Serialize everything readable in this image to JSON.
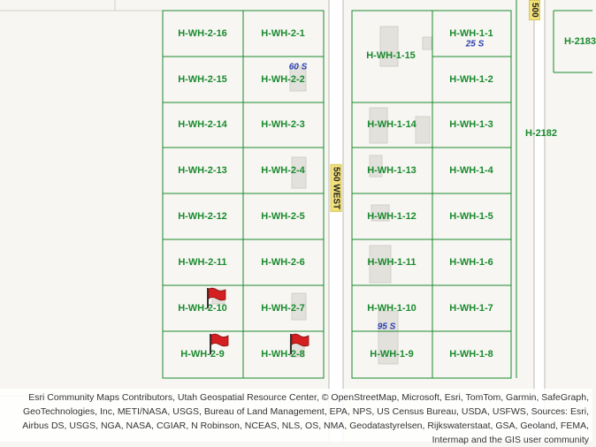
{
  "map": {
    "road": {
      "label": "550 WEST",
      "corner_label": "500"
    },
    "parcels_west": [
      "H-WH-2-16",
      "H-WH-2-1",
      "H-WH-2-15",
      "H-WH-2-2",
      "H-WH-2-14",
      "H-WH-2-3",
      "H-WH-2-13",
      "H-WH-2-4",
      "H-WH-2-12",
      "H-WH-2-5",
      "H-WH-2-11",
      "H-WH-2-6",
      "H-WH-2-10",
      "H-WH-2-7",
      "H-WH-2-9",
      "H-WH-2-8"
    ],
    "parcels_east": [
      "H-WH-1-15",
      "H-WH-1-1",
      "H-WH-1-2",
      "H-WH-1-14",
      "H-WH-1-3",
      "H-WH-1-13",
      "H-WH-1-4",
      "H-WH-1-12",
      "H-WH-1-5",
      "H-WH-1-11",
      "H-WH-1-6",
      "H-WH-1-10",
      "H-WH-1-7",
      "H-WH-1-9",
      "H-WH-1-8"
    ],
    "far_east_labels": [
      "H-2183",
      "H-2182"
    ],
    "address_labels": [
      "60 S",
      "25 S",
      "95 S"
    ],
    "flags": [
      "flag-1",
      "flag-2",
      "flag-3"
    ]
  },
  "colors": {
    "parcel_line": "#1a8a2e",
    "parcel_text": "#1a8a2e",
    "address_text": "#2b3fb0",
    "road_label_bg": "#f3e27a",
    "building": "#e2e1dc",
    "flag": "#d42020"
  },
  "attribution": {
    "text": "Esri Community Maps Contributors, Utah Geospatial Resource Center, © OpenStreetMap, Microsoft, Esri, TomTom, Garmin, SafeGraph, GeoTechnologies, Inc, METI/NASA, USGS, Bureau of Land Management, EPA, NPS, US Census Bureau, USDA, USFWS, Sources: Esri, Airbus DS, USGS, NGA, NASA, CGIAR, N Robinson, NCEAS, NLS, OS, NMA, Geodatastyrelsen, Rijkswaterstaat, GSA, Geoland, FEMA, Intermap and the GIS user community"
  }
}
